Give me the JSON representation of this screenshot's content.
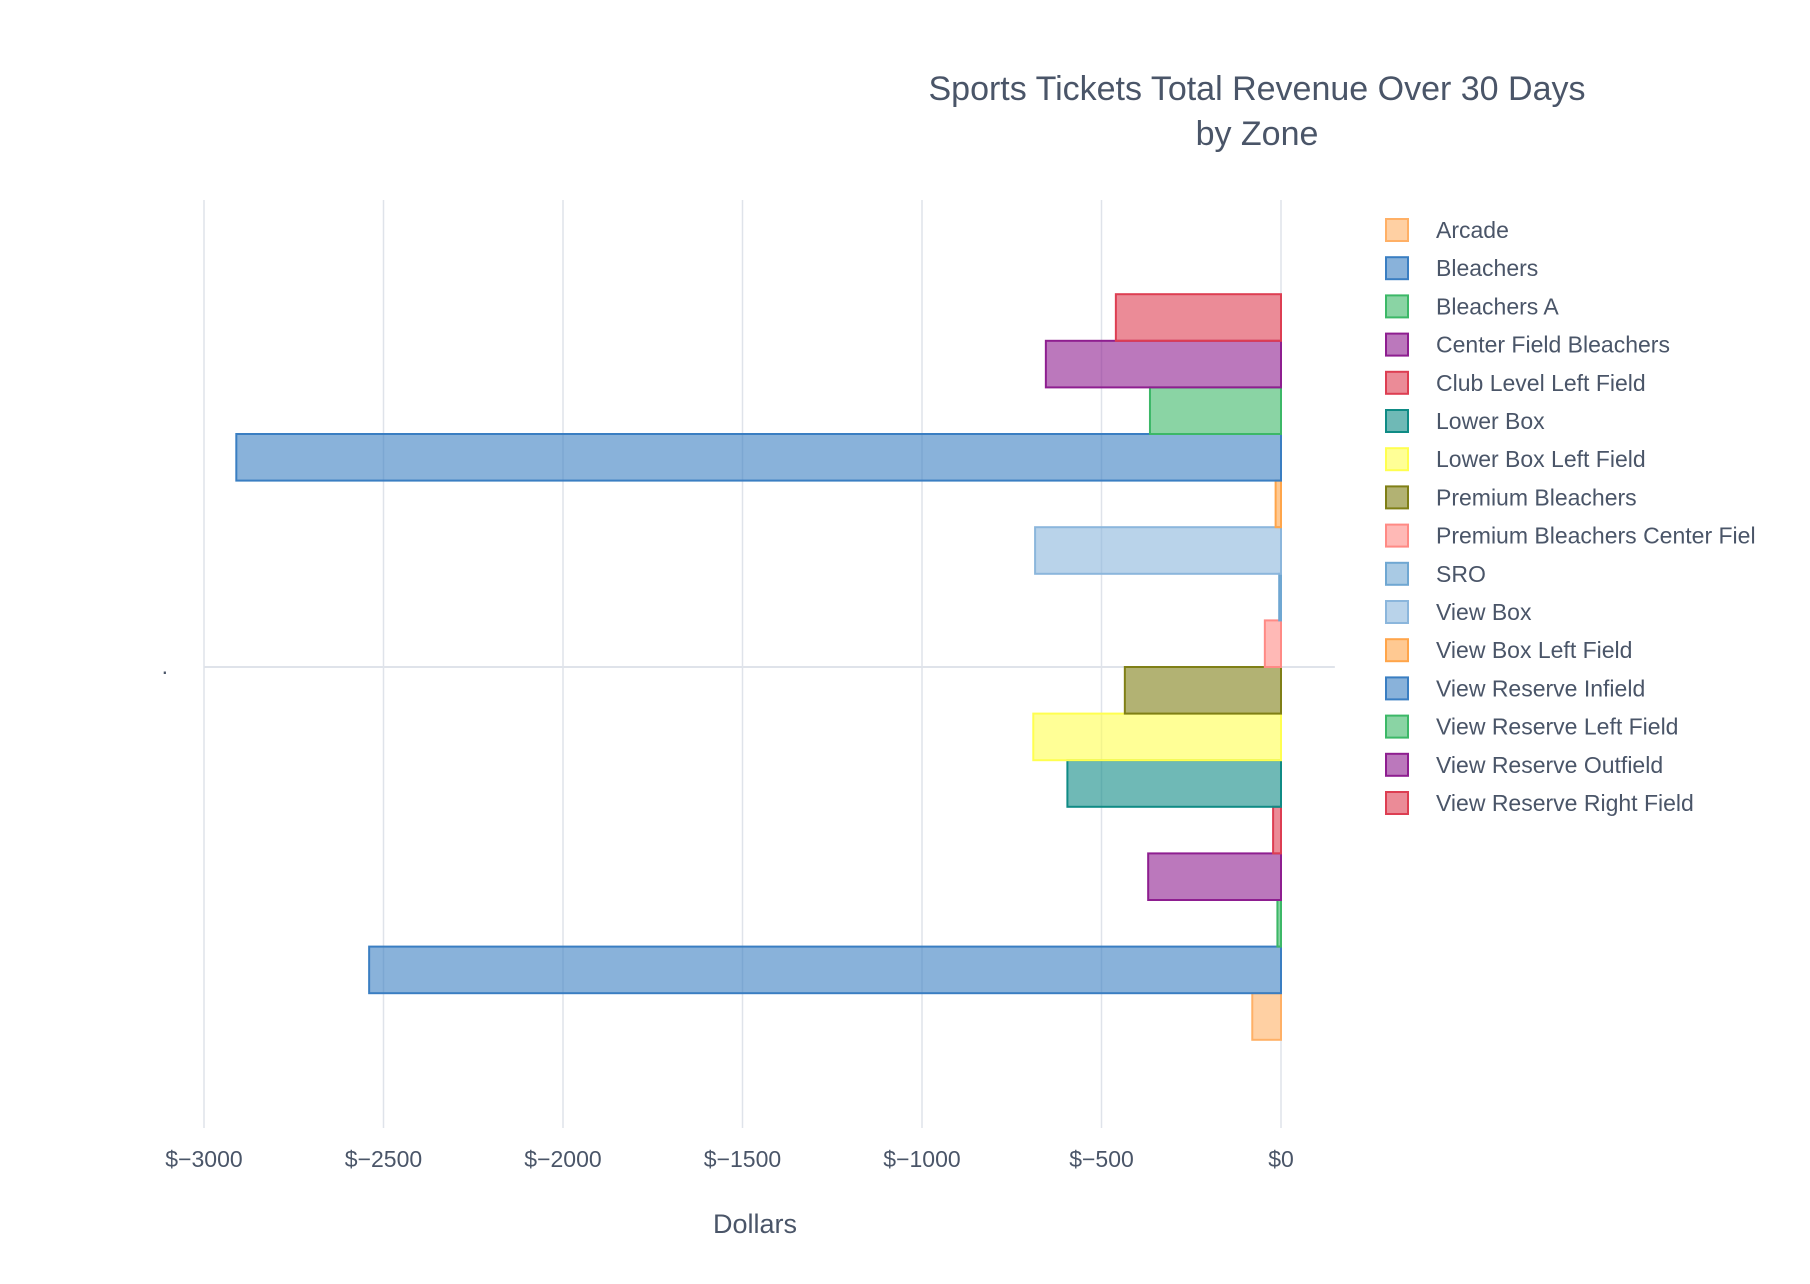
{
  "chart_data": {
    "type": "bar",
    "orientation": "horizontal",
    "barmode": "group",
    "title": "Sports Tickets Total Revenue Over 30 Days",
    "subtitle": "by Zone",
    "xlabel": "Dollars",
    "ylabel": "",
    "categories": [
      "."
    ],
    "xlim": [
      -3000,
      150
    ],
    "xticks": [
      -3000,
      -2500,
      -2000,
      -1500,
      -1000,
      -500,
      0
    ],
    "xtick_labels": [
      "$−3000",
      "$−2500",
      "$−2000",
      "$−1500",
      "$−1000",
      "$−500",
      "$0"
    ],
    "grid": true,
    "legend_position": "right",
    "series": [
      {
        "name": "Arcade",
        "values": [
          -80
        ],
        "color": "#FFB066"
      },
      {
        "name": "Bleachers",
        "values": [
          -2540
        ],
        "color": "#3A7EC2"
      },
      {
        "name": "Bleachers A",
        "values": [
          -10
        ],
        "color": "#3CB867"
      },
      {
        "name": "Center Field Bleachers",
        "values": [
          -370
        ],
        "color": "#8E1E90"
      },
      {
        "name": "Club Level Left Field",
        "values": [
          -22
        ],
        "color": "#DD3E52"
      },
      {
        "name": "Lower Box",
        "values": [
          -595
        ],
        "color": "#0F8B85"
      },
      {
        "name": "Lower Box Left Field",
        "values": [
          -690
        ],
        "color": "#FFFF50"
      },
      {
        "name": "Premium Bleachers",
        "values": [
          -435
        ],
        "color": "#7F7F16"
      },
      {
        "name": "Premium Bleachers Center Fiel",
        "values": [
          -45
        ],
        "color": "#FF8A85"
      },
      {
        "name": "SRO",
        "values": [
          -5
        ],
        "color": "#6FA7D2"
      },
      {
        "name": "View Box",
        "values": [
          -685
        ],
        "color": "#8BB6DC"
      },
      {
        "name": "View Box Left Field",
        "values": [
          -15
        ],
        "color": "#FFA54A"
      },
      {
        "name": "View Reserve Infield",
        "values": [
          -2910
        ],
        "color": "#3A7EC2"
      },
      {
        "name": "View Reserve Left Field",
        "values": [
          -365
        ],
        "color": "#3CB867"
      },
      {
        "name": "View Reserve Outfield",
        "values": [
          -655
        ],
        "color": "#8E1E90"
      },
      {
        "name": "View Reserve Right Field",
        "values": [
          -460
        ],
        "color": "#DD3E52"
      }
    ]
  }
}
